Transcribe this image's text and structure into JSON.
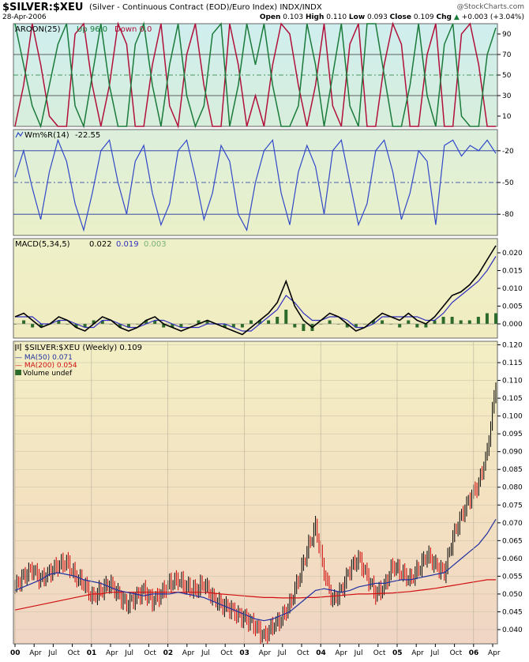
{
  "header": {
    "symbol": "$SILVER:$XEU",
    "description": "(Silver - Continuous Contract (EOD)/Euro Index)",
    "exchange": "INDX/INDX",
    "date": "28-Apr-2006",
    "copyright": "@StockCharts.com",
    "open_label": "Open",
    "open": "0.103",
    "high_label": "High",
    "high": "0.110",
    "low_label": "Low",
    "low": "0.093",
    "close_label": "Close",
    "close": "0.109",
    "chg_label": "Chg",
    "chg": "+0.003 (+3.04%)",
    "chg_arrow": "▲"
  },
  "colors": {
    "aroon_up": "#1a7a3a",
    "aroon_down": "#b0103a",
    "wmr_line": "#3048c8",
    "macd_line": "#000000",
    "signal_line": "#3030c0",
    "histogram": "#2d6b2d",
    "ma50": "#2030a0",
    "ma200": "#d01010",
    "bar_up": "#000000",
    "bar_down": "#d00000"
  },
  "chart_data": [
    {
      "type": "line",
      "name": "aroon",
      "label": "AROON(25)",
      "series_labels": [
        "Up 96.0",
        "Down 0.0"
      ],
      "ylim": [
        0,
        100
      ],
      "yticks": [
        "90",
        "70",
        "50",
        "30",
        "10"
      ],
      "ytick_values": [
        90,
        70,
        50,
        30,
        10
      ],
      "series": [
        {
          "name": "Up",
          "values": [
            100,
            60,
            20,
            0,
            40,
            80,
            100,
            20,
            0,
            50,
            100,
            40,
            0,
            0,
            80,
            100,
            40,
            0,
            60,
            100,
            30,
            0,
            20,
            90,
            100,
            0,
            40,
            100,
            60,
            100,
            40,
            0,
            0,
            20,
            100,
            60,
            0,
            50,
            100,
            20,
            0,
            100,
            100,
            50,
            0,
            0,
            40,
            100,
            30,
            0,
            80,
            100,
            10,
            0,
            0,
            70,
            96
          ]
        },
        {
          "name": "Down",
          "values": [
            0,
            40,
            100,
            60,
            10,
            0,
            0,
            90,
            100,
            40,
            0,
            40,
            100,
            80,
            0,
            0,
            60,
            100,
            20,
            0,
            70,
            100,
            40,
            0,
            0,
            100,
            60,
            0,
            30,
            0,
            60,
            100,
            90,
            40,
            0,
            40,
            100,
            20,
            0,
            80,
            100,
            0,
            0,
            60,
            100,
            80,
            0,
            0,
            70,
            100,
            0,
            0,
            90,
            100,
            60,
            0,
            0
          ]
        }
      ]
    },
    {
      "type": "line",
      "name": "williams_r",
      "label": "Wm%R(14)",
      "value_label": "-22.55",
      "ylim": [
        -100,
        0
      ],
      "yticks": [
        "-20",
        "-50",
        "-80"
      ],
      "ytick_values": [
        -20,
        -50,
        -80
      ],
      "series": [
        {
          "name": "Wm%R",
          "values": [
            -45,
            -20,
            -55,
            -85,
            -40,
            -10,
            -30,
            -70,
            -95,
            -60,
            -20,
            -10,
            -50,
            -80,
            -30,
            -15,
            -60,
            -90,
            -70,
            -20,
            -10,
            -45,
            -85,
            -60,
            -15,
            -30,
            -80,
            -95,
            -50,
            -20,
            -10,
            -60,
            -90,
            -40,
            -15,
            -35,
            -80,
            -20,
            -10,
            -50,
            -90,
            -70,
            -20,
            -10,
            -40,
            -85,
            -60,
            -20,
            -30,
            -90,
            -15,
            -10,
            -25,
            -15,
            -20,
            -10,
            -22.55
          ]
        }
      ]
    },
    {
      "type": "line",
      "name": "macd",
      "label": "MACD(5,34,5)",
      "macd_value": "0.022",
      "signal_value": "0.019",
      "hist_value": "0.003",
      "ylim": [
        -0.004,
        0.024
      ],
      "yticks": [
        "0.020",
        "0.015",
        "0.010",
        "0.005",
        "0.000"
      ],
      "ytick_values": [
        0.02,
        0.015,
        0.01,
        0.005,
        0.0
      ],
      "series": [
        {
          "name": "MACD",
          "values": [
            0.002,
            0.003,
            0.001,
            -0.001,
            0.0,
            0.002,
            0.001,
            -0.001,
            -0.002,
            0.0,
            0.002,
            0.001,
            -0.001,
            -0.002,
            -0.001,
            0.001,
            0.002,
            0.0,
            -0.001,
            -0.002,
            -0.001,
            0.0,
            0.001,
            0.0,
            -0.001,
            -0.002,
            -0.003,
            -0.001,
            0.001,
            0.003,
            0.006,
            0.012,
            0.005,
            0.001,
            -0.001,
            0.001,
            0.003,
            0.002,
            0.0,
            -0.002,
            -0.001,
            0.001,
            0.003,
            0.002,
            0.001,
            0.003,
            0.001,
            0.0,
            0.002,
            0.005,
            0.008,
            0.009,
            0.011,
            0.014,
            0.018,
            0.022
          ]
        },
        {
          "name": "Signal",
          "values": [
            0.002,
            0.002,
            0.002,
            0.0,
            0.0,
            0.001,
            0.001,
            0.0,
            -0.001,
            -0.001,
            0.001,
            0.001,
            0.0,
            -0.001,
            -0.001,
            0.0,
            0.001,
            0.001,
            0.0,
            -0.001,
            -0.001,
            -0.001,
            0.0,
            0.0,
            0.0,
            -0.001,
            -0.002,
            -0.002,
            0.0,
            0.002,
            0.004,
            0.008,
            0.006,
            0.003,
            0.001,
            0.001,
            0.002,
            0.002,
            0.001,
            -0.001,
            -0.001,
            0.0,
            0.002,
            0.002,
            0.002,
            0.002,
            0.002,
            0.001,
            0.001,
            0.003,
            0.006,
            0.008,
            0.01,
            0.012,
            0.015,
            0.019
          ]
        }
      ]
    },
    {
      "type": "line",
      "name": "price",
      "label": "$SILVER:$XEU (Weekly) 0.109",
      "legend": [
        "MA(50) 0.071",
        "MA(200) 0.054",
        "Volume undef"
      ],
      "ylim": [
        0.036,
        0.121
      ],
      "yticks": [
        "0.120",
        "0.115",
        "0.110",
        "0.105",
        "0.100",
        "0.095",
        "0.090",
        "0.085",
        "0.080",
        "0.075",
        "0.070",
        "0.065",
        "0.060",
        "0.055",
        "0.050",
        "0.045",
        "0.040"
      ],
      "ytick_values": [
        0.12,
        0.115,
        0.11,
        0.105,
        0.1,
        0.095,
        0.09,
        0.085,
        0.08,
        0.075,
        0.07,
        0.065,
        0.06,
        0.055,
        0.05,
        0.045,
        0.04
      ],
      "x_start": "2000-01",
      "x_end": "2006-04",
      "x_tick_labels": [
        "00",
        "Apr",
        "Jul",
        "Oct",
        "01",
        "Apr",
        "Jul",
        "Oct",
        "02",
        "Apr",
        "Jul",
        "Oct",
        "03",
        "Apr",
        "Jul",
        "Oct",
        "04",
        "Apr",
        "Jul",
        "Oct",
        "05",
        "Apr",
        "Jul",
        "Oct",
        "06",
        "Apr"
      ],
      "x_tick_bold": [
        true,
        false,
        false,
        false,
        true,
        false,
        false,
        false,
        true,
        false,
        false,
        false,
        true,
        false,
        false,
        false,
        true,
        false,
        false,
        false,
        true,
        false,
        false,
        false,
        true,
        false
      ],
      "series": [
        {
          "name": "Close",
          "values": [
            0.052,
            0.055,
            0.057,
            0.054,
            0.056,
            0.058,
            0.059,
            0.055,
            0.053,
            0.049,
            0.051,
            0.053,
            0.05,
            0.047,
            0.049,
            0.051,
            0.048,
            0.05,
            0.053,
            0.054,
            0.052,
            0.051,
            0.053,
            0.049,
            0.047,
            0.046,
            0.044,
            0.043,
            0.041,
            0.038,
            0.041,
            0.043,
            0.047,
            0.054,
            0.062,
            0.069,
            0.056,
            0.048,
            0.051,
            0.057,
            0.06,
            0.055,
            0.05,
            0.052,
            0.058,
            0.056,
            0.054,
            0.057,
            0.061,
            0.058,
            0.056,
            0.066,
            0.072,
            0.077,
            0.081,
            0.09,
            0.109
          ]
        },
        {
          "name": "MA(50)",
          "values": [
            0.051,
            0.052,
            0.053,
            0.054,
            0.0555,
            0.056,
            0.0555,
            0.055,
            0.054,
            0.0535,
            0.053,
            0.052,
            0.051,
            0.0505,
            0.05,
            0.0495,
            0.05,
            0.05,
            0.05,
            0.0505,
            0.05,
            0.0495,
            0.049,
            0.048,
            0.047,
            0.046,
            0.045,
            0.044,
            0.043,
            0.0425,
            0.043,
            0.044,
            0.045,
            0.047,
            0.049,
            0.051,
            0.0515,
            0.051,
            0.0505,
            0.051,
            0.052,
            0.0525,
            0.053,
            0.053,
            0.0535,
            0.054,
            0.054,
            0.0545,
            0.055,
            0.0555,
            0.056,
            0.058,
            0.06,
            0.062,
            0.064,
            0.067,
            0.071
          ]
        },
        {
          "name": "MA(200)",
          "values": [
            0.0455,
            0.046,
            0.0465,
            0.047,
            0.0475,
            0.048,
            0.0485,
            0.049,
            0.0495,
            0.05,
            0.05,
            0.0505,
            0.0505,
            0.0505,
            0.0505,
            0.0505,
            0.0505,
            0.0505,
            0.0505,
            0.0505,
            0.0505,
            0.0505,
            0.0505,
            0.0503,
            0.05,
            0.0498,
            0.0496,
            0.0494,
            0.0492,
            0.049,
            0.049,
            0.0489,
            0.0489,
            0.0489,
            0.049,
            0.049,
            0.0492,
            0.0494,
            0.0496,
            0.0498,
            0.05,
            0.05,
            0.0501,
            0.0502,
            0.0503,
            0.0505,
            0.0507,
            0.051,
            0.0513,
            0.0516,
            0.052,
            0.0524,
            0.0528,
            0.0532,
            0.0536,
            0.054,
            0.054
          ]
        }
      ]
    }
  ]
}
